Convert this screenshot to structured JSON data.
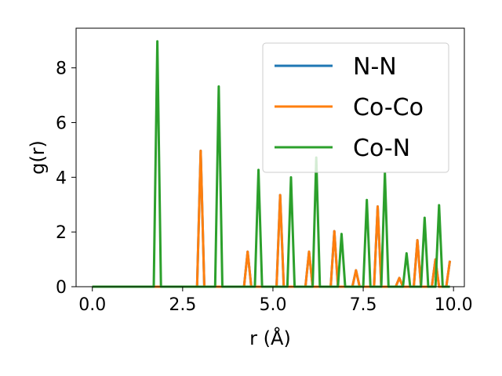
{
  "chart_data": {
    "type": "line",
    "xlabel": "r (Å)",
    "ylabel": "g(r)",
    "xlim": [
      -0.45,
      10.3
    ],
    "ylim": [
      0,
      9.45
    ],
    "xticks": [
      0.0,
      2.5,
      5.0,
      7.5,
      10.0
    ],
    "xtick_labels": [
      "0.0",
      "2.5",
      "5.0",
      "7.5",
      "10.0"
    ],
    "yticks": [
      0,
      2,
      4,
      6,
      8
    ],
    "ytick_labels": [
      "0",
      "2",
      "4",
      "6",
      "8"
    ],
    "grid": false,
    "legend": {
      "position": "top-right"
    },
    "series": [
      {
        "name": "N-N",
        "color": "#1f77b4",
        "x": [
          0.0,
          1.7,
          1.8,
          1.9,
          2.9,
          3.0,
          3.1,
          3.4,
          3.5,
          3.6,
          4.2,
          4.3,
          4.4,
          4.5,
          4.6,
          4.7,
          5.1,
          5.2,
          5.3,
          5.4,
          5.5,
          5.6,
          5.9,
          6.0,
          6.1,
          6.2,
          6.3,
          6.6,
          6.7,
          6.8,
          6.9,
          7.0,
          7.2,
          7.3,
          7.4,
          7.5,
          7.6,
          7.7,
          7.8,
          7.9,
          8.0,
          8.1,
          8.2,
          8.4,
          8.5,
          8.6,
          8.7,
          8.8,
          8.9,
          9.0,
          9.1,
          9.2,
          9.3,
          9.4,
          9.5,
          9.6,
          9.7,
          9.8,
          9.9
        ],
        "y": [
          0,
          0,
          0,
          0,
          0,
          4.97,
          0,
          0,
          0,
          0,
          0,
          1.28,
          0,
          0,
          0,
          0,
          0,
          3.35,
          0,
          0,
          0,
          0,
          0,
          1.28,
          0,
          0,
          0,
          0,
          2.03,
          0,
          0,
          0,
          0,
          0.6,
          0,
          0,
          0,
          0,
          0,
          2.93,
          0,
          0,
          0,
          0,
          0.32,
          0,
          0,
          0,
          0,
          1.7,
          0,
          0,
          0,
          0,
          1.0,
          0,
          0,
          0,
          0.95
        ]
      },
      {
        "name": "Co-Co",
        "color": "#ff7f0e",
        "x": [
          0.0,
          1.7,
          1.8,
          1.9,
          2.9,
          3.0,
          3.1,
          3.4,
          3.5,
          3.6,
          4.2,
          4.3,
          4.4,
          4.5,
          4.6,
          4.7,
          5.1,
          5.2,
          5.3,
          5.4,
          5.5,
          5.6,
          5.9,
          6.0,
          6.1,
          6.2,
          6.3,
          6.6,
          6.7,
          6.8,
          6.9,
          7.0,
          7.2,
          7.3,
          7.4,
          7.5,
          7.6,
          7.7,
          7.8,
          7.9,
          8.0,
          8.1,
          8.2,
          8.4,
          8.5,
          8.6,
          8.7,
          8.8,
          8.9,
          9.0,
          9.1,
          9.2,
          9.3,
          9.4,
          9.5,
          9.6,
          9.7,
          9.8,
          9.9
        ],
        "y": [
          0,
          0,
          0,
          0,
          0,
          4.97,
          0,
          0,
          0,
          0,
          0,
          1.28,
          0,
          0,
          0,
          0,
          0,
          3.35,
          0,
          0,
          0,
          0,
          0,
          1.28,
          0,
          0,
          0,
          0,
          2.03,
          0,
          0,
          0,
          0,
          0.6,
          0,
          0,
          0,
          0,
          0,
          2.93,
          0,
          0,
          0,
          0,
          0.32,
          0,
          0,
          0,
          0,
          1.7,
          0,
          0,
          0,
          0,
          1.0,
          0,
          0,
          0,
          0.95
        ]
      },
      {
        "name": "Co-N",
        "color": "#2ca02c",
        "x": [
          0.0,
          1.7,
          1.8,
          1.9,
          3.4,
          3.5,
          3.6,
          4.5,
          4.6,
          4.7,
          5.4,
          5.5,
          5.6,
          6.1,
          6.2,
          6.3,
          6.8,
          6.9,
          7.0,
          7.5,
          7.6,
          7.7,
          8.0,
          8.1,
          8.2,
          8.6,
          8.7,
          8.8,
          9.1,
          9.2,
          9.3,
          9.5,
          9.6,
          9.7,
          9.9
        ],
        "y": [
          0,
          0,
          8.97,
          0,
          0,
          7.32,
          0,
          0,
          4.27,
          0,
          0,
          4.0,
          0,
          0,
          4.72,
          0,
          0,
          1.93,
          0,
          0,
          3.17,
          0,
          0,
          4.15,
          0,
          0,
          1.22,
          0,
          0,
          2.52,
          0,
          0,
          2.98,
          0,
          0
        ]
      }
    ]
  }
}
